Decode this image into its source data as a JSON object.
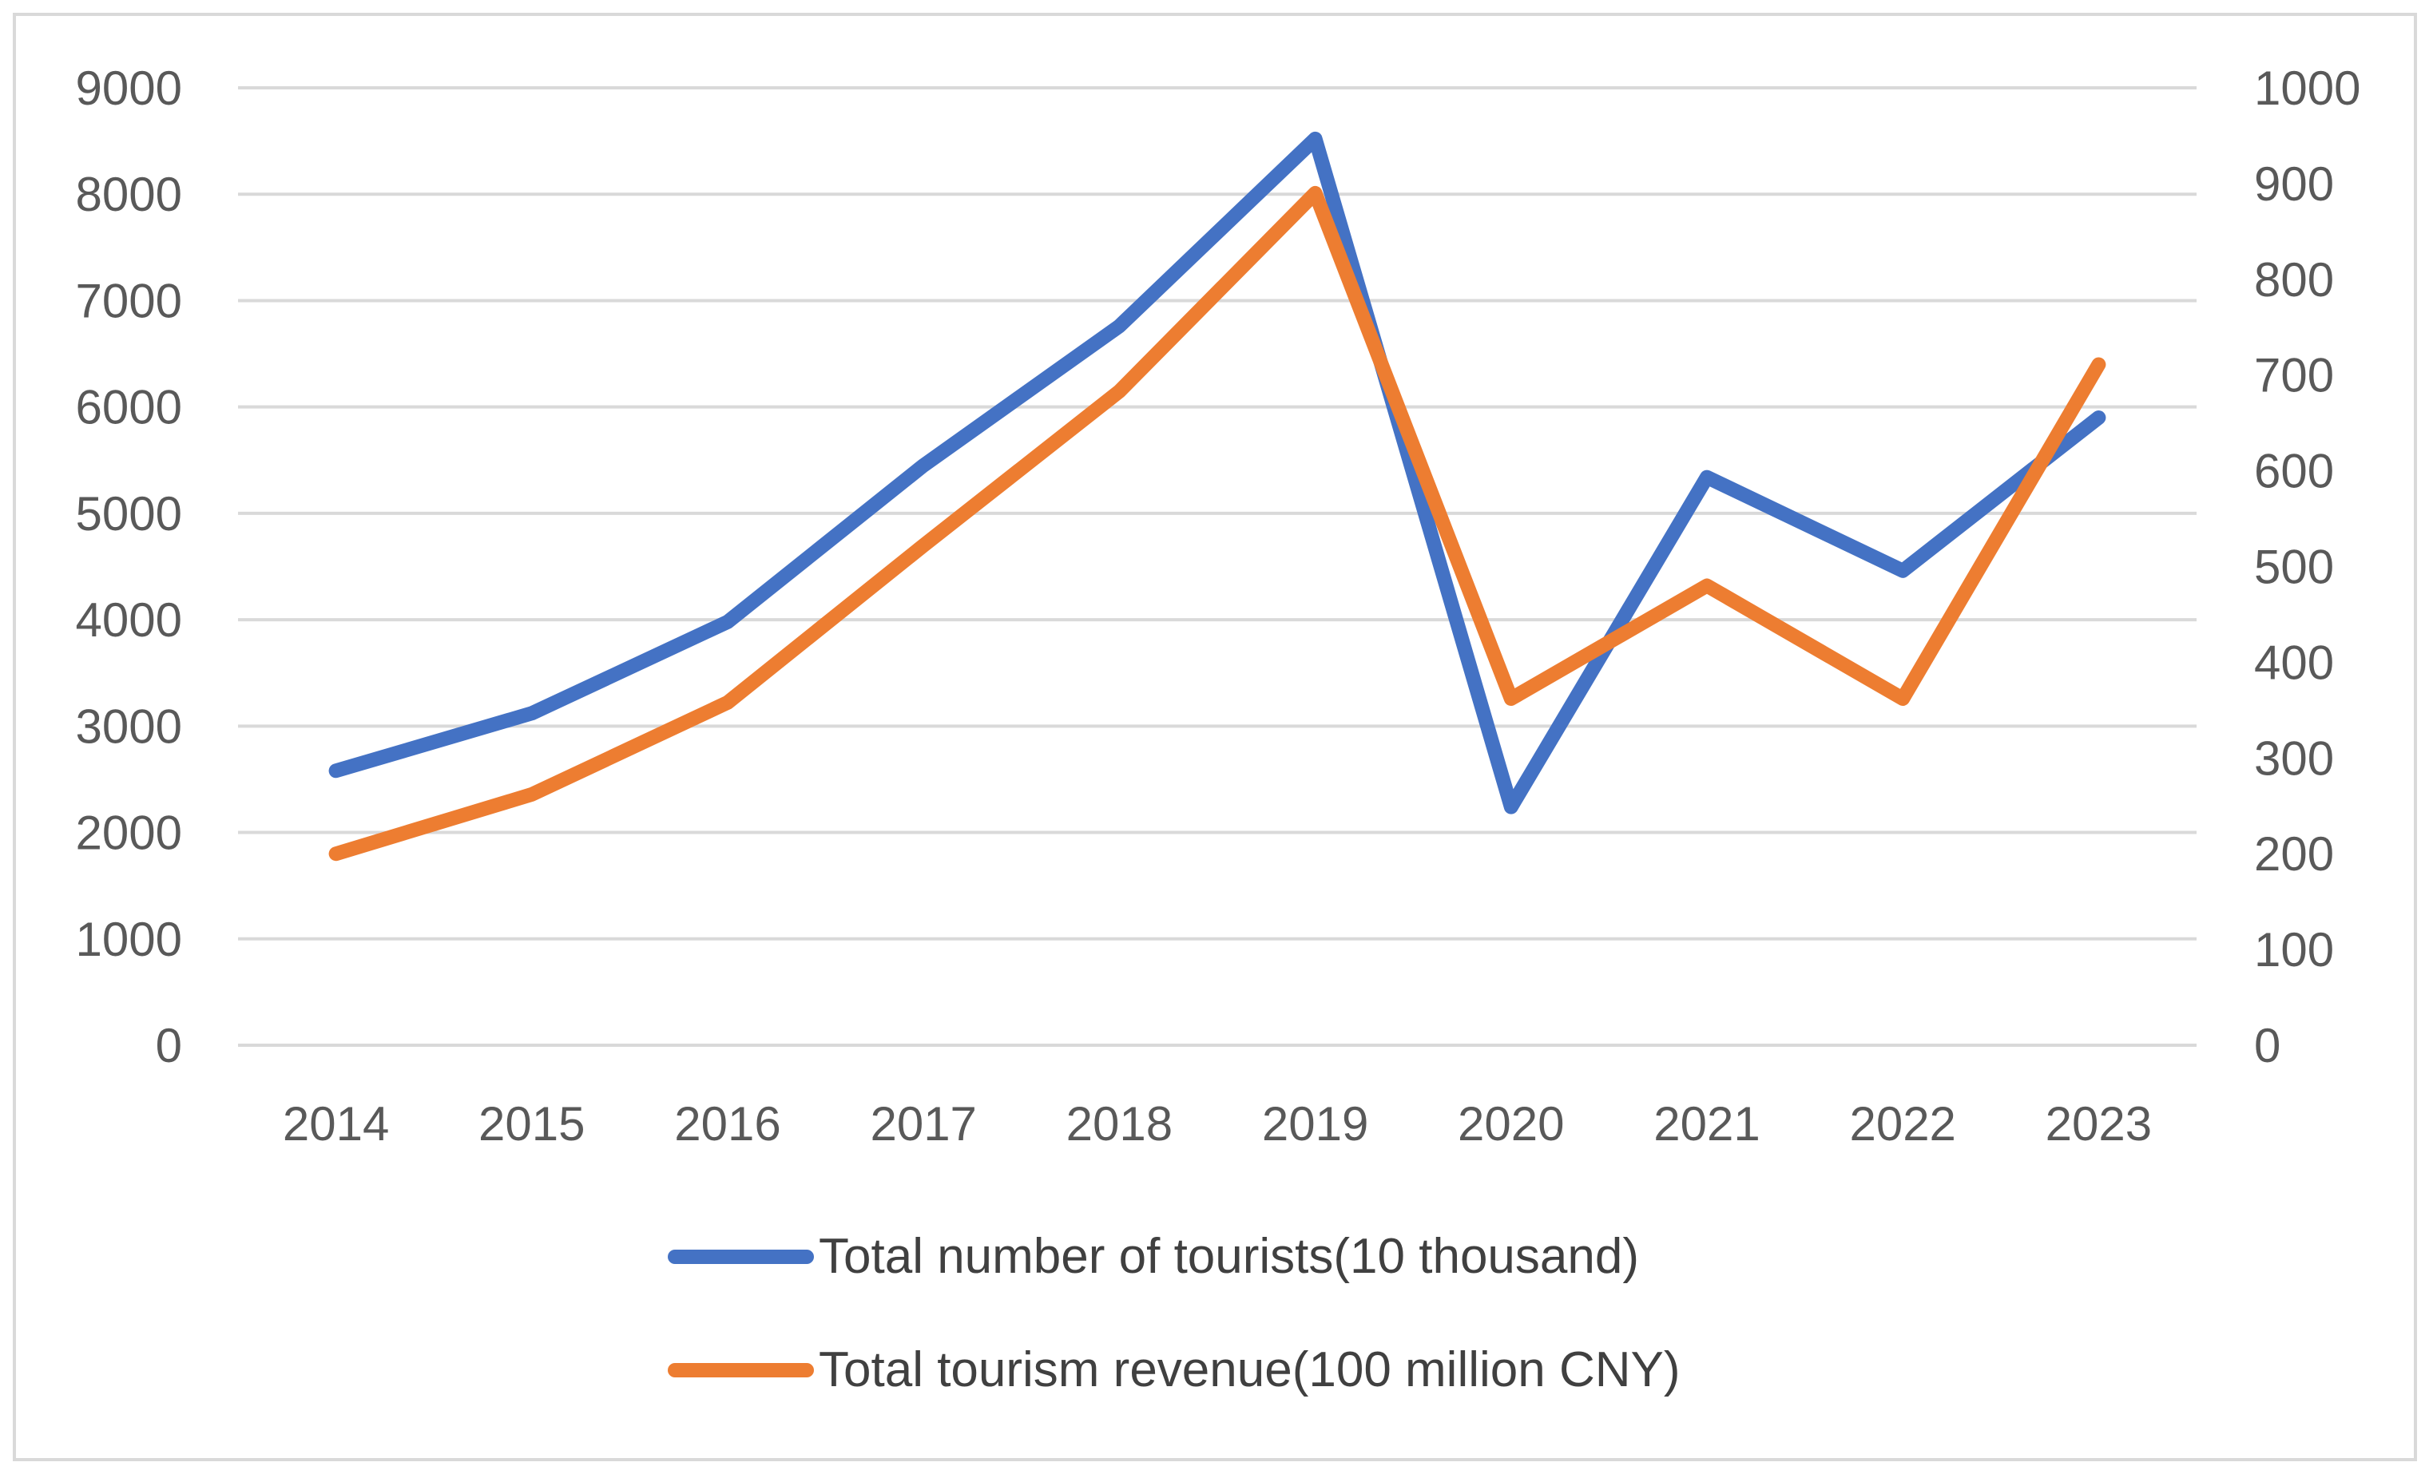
{
  "chart_data": {
    "type": "line",
    "title": "",
    "categories": [
      "2014",
      "2015",
      "2016",
      "2017",
      "2018",
      "2019",
      "2020",
      "2021",
      "2022",
      "2023"
    ],
    "series": [
      {
        "name": "Total number of tourists(10 thousand)",
        "axis": "left",
        "color": "#4472c4",
        "values": [
          2580,
          3120,
          3980,
          5450,
          6760,
          8520,
          2240,
          5340,
          4460,
          5900
        ]
      },
      {
        "name": "Total tourism revenue(100 million CNY)",
        "axis": "right",
        "color": "#ed7d31",
        "values": [
          200,
          262,
          358,
          522,
          683,
          890,
          362,
          480,
          362,
          711
        ]
      }
    ],
    "y_left": {
      "ticks": [
        "0",
        "1000",
        "2000",
        "3000",
        "4000",
        "5000",
        "6000",
        "7000",
        "8000",
        "9000"
      ],
      "ylim": [
        0,
        9000
      ]
    },
    "y_right": {
      "ticks": [
        "0",
        "100",
        "200",
        "300",
        "400",
        "500",
        "600",
        "700",
        "800",
        "900",
        "1000"
      ],
      "ylim": [
        0,
        1000
      ]
    },
    "grid": true,
    "gridColor": "#d9d9d9",
    "legend_position": "bottom"
  }
}
